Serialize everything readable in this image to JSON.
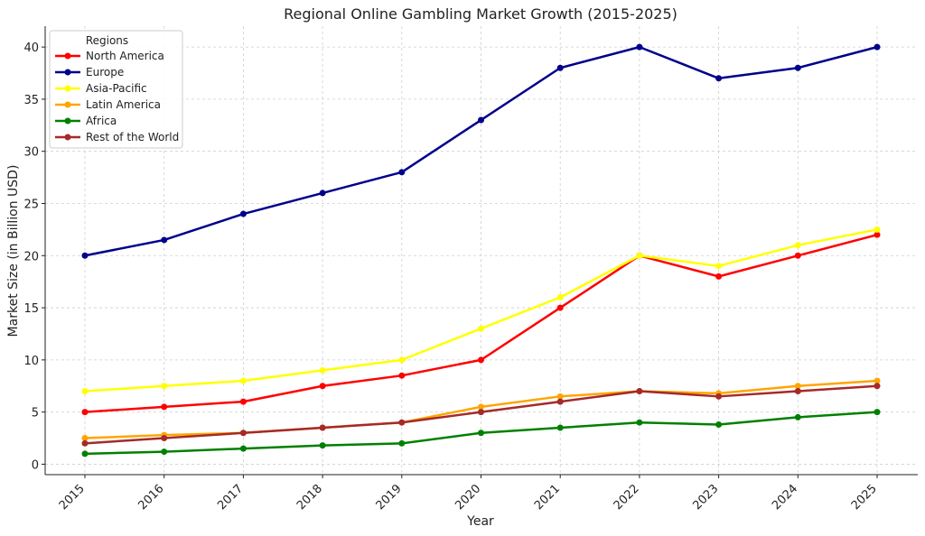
{
  "chart_data": {
    "type": "line",
    "title": "Regional Online Gambling Market Growth (2015-2025)",
    "xlabel": "Year",
    "ylabel": "Market Size (in Billion USD)",
    "categories": [
      "2015",
      "2016",
      "2017",
      "2018",
      "2019",
      "2020",
      "2021",
      "2022",
      "2023",
      "2024",
      "2025"
    ],
    "ylim": [
      -1,
      42
    ],
    "yticks": [
      0,
      5,
      10,
      15,
      20,
      25,
      30,
      35,
      40
    ],
    "grid": true,
    "legend_title": "Regions",
    "legend_position": "top-left",
    "series": [
      {
        "name": "North America",
        "color": "#ff0000",
        "values": [
          5,
          5.5,
          6,
          7.5,
          8.5,
          10,
          15,
          20,
          18,
          20,
          22
        ]
      },
      {
        "name": "Europe",
        "color": "#00008b",
        "values": [
          20,
          21.5,
          24,
          26,
          28,
          33,
          38,
          40,
          37,
          38,
          40
        ]
      },
      {
        "name": "Asia-Pacific",
        "color": "#ffff00",
        "values": [
          7,
          7.5,
          8,
          9,
          10,
          13,
          16,
          20,
          19,
          21,
          22.5
        ]
      },
      {
        "name": "Latin America",
        "color": "#ffa500",
        "values": [
          2.5,
          2.8,
          3,
          3.5,
          4,
          5.5,
          6.5,
          7,
          6.8,
          7.5,
          8
        ]
      },
      {
        "name": "Africa",
        "color": "#008000",
        "values": [
          1,
          1.2,
          1.5,
          1.8,
          2,
          3,
          3.5,
          4,
          3.8,
          4.5,
          5
        ]
      },
      {
        "name": "Rest of the World",
        "color": "#a52a2a",
        "values": [
          2,
          2.5,
          3,
          3.5,
          4,
          5,
          6,
          7,
          6.5,
          7,
          7.5
        ]
      }
    ]
  }
}
